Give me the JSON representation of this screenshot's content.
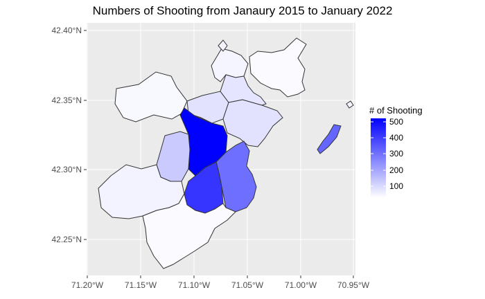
{
  "title": "Numbers of Shooting from Janaury 2015 to January 2022",
  "axes": {
    "x_ticks": [
      "71.20°W",
      "71.15°W",
      "71.10°W",
      "71.05°W",
      "71.00°W",
      "70.95°W"
    ],
    "y_ticks": [
      "42.40°N",
      "42.35°N",
      "42.30°N",
      "42.25°N"
    ]
  },
  "legend": {
    "title": "# of Shooting",
    "ticks": [
      "500",
      "400",
      "300",
      "200",
      "100"
    ],
    "color_low": "#ffffff",
    "color_high": "#0000ff"
  },
  "chart_data": {
    "type": "choropleth",
    "value_range": [
      0,
      530
    ],
    "regions": [
      {
        "id": "charlestown",
        "value": 20
      },
      {
        "id": "east-boston",
        "value": 10
      },
      {
        "id": "allston-brighton",
        "value": 15
      },
      {
        "id": "back-bay-fenway",
        "value": 60
      },
      {
        "id": "south-end",
        "value": 60
      },
      {
        "id": "roxbury",
        "value": 530
      },
      {
        "id": "jamaica-plain",
        "value": 110
      },
      {
        "id": "dorchester",
        "value": 300
      },
      {
        "id": "mattapan",
        "value": 420
      },
      {
        "id": "roslindale",
        "value": 25
      },
      {
        "id": "west-roxbury",
        "value": 8
      },
      {
        "id": "hyde-park",
        "value": 55
      },
      {
        "id": "south-boston",
        "value": 320
      }
    ]
  }
}
